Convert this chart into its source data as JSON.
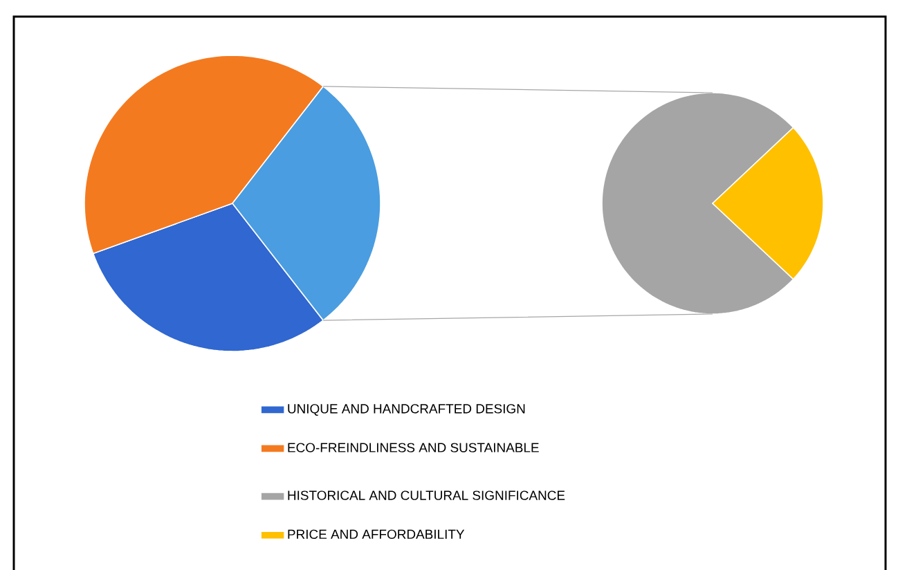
{
  "chart_data": [
    {
      "type": "pie",
      "categories": [
        "UNIQUE AND HANDCRAFTED DESIGN",
        "ECO-FREINDLINESS AND SUSTAINABLE",
        null
      ],
      "values": [
        30,
        41,
        29
      ],
      "colors": [
        "#3067d0",
        "#f47a20",
        "#4a9de0"
      ],
      "legend": "bottom"
    },
    {
      "type": "pie",
      "categories": [
        "HISTORICAL AND CULTURAL SIGNIFICANCE",
        "PRICE AND AFFORDABILITY"
      ],
      "values": [
        76,
        24
      ],
      "colors": [
        "#a5a5a5",
        "#ffc000"
      ],
      "legend": "bottom"
    }
  ]
}
